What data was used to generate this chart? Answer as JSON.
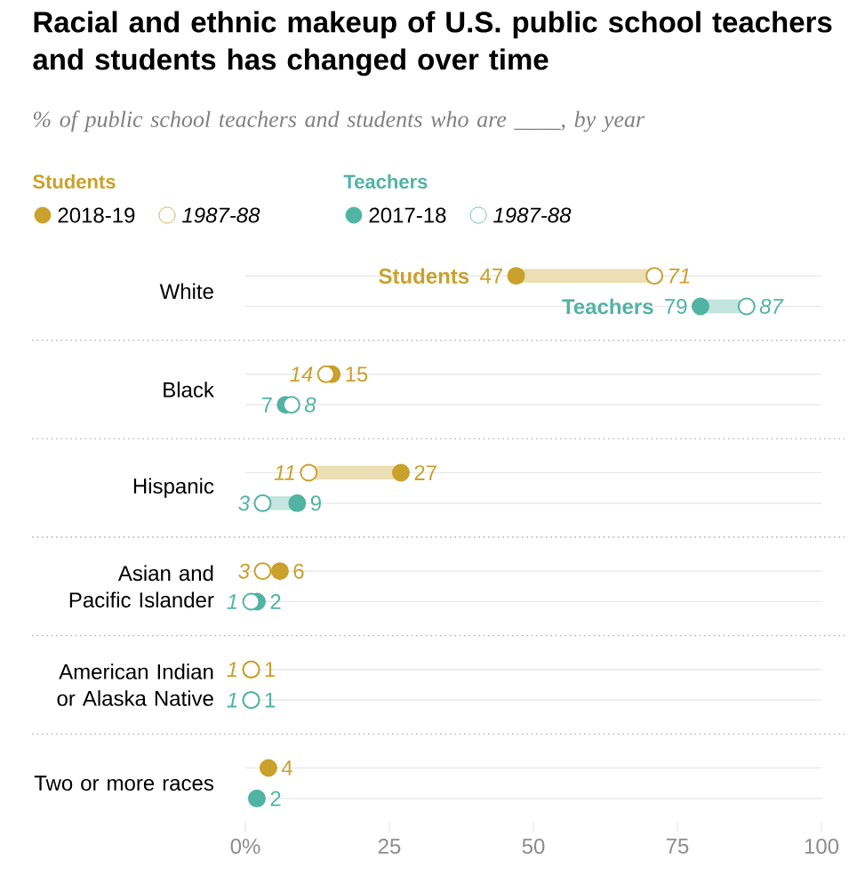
{
  "chart_data": {
    "type": "scatter",
    "orientation": "horizontal",
    "title": "Racial and ethnic makeup of U.S. public school teachers and students has changed over time",
    "subtitle": "% of public school teachers and students who are ____, by year",
    "categories": [
      "White",
      "Black",
      "Hispanic",
      "Asian and Pacific Islander",
      "American Indian or Alaska Native",
      "Two or more races"
    ],
    "series": [
      {
        "name": "2018-19",
        "color": "#c9a12c",
        "values": [
          47,
          15,
          27,
          6,
          1,
          4
        ]
      },
      {
        "name": "1987-88",
        "color": "#c9a12c",
        "values": [
          71,
          14,
          11,
          3,
          1,
          null
        ]
      },
      {
        "name": "2017-18",
        "color": "#52b3a3",
        "values": [
          79,
          7,
          9,
          2,
          1,
          2
        ]
      },
      {
        "name": "1987-88",
        "color": "#52b3a3",
        "values": [
          87,
          8,
          3,
          1,
          1,
          null
        ]
      },
      {
        "type": "bar",
        "color": "#ecdeb5",
        "base": [
          47,
          null,
          11,
          null,
          null,
          null
        ],
        "values": [
          24,
          null,
          16,
          null,
          null,
          null
        ],
        "value_labels": [
          null,
          null,
          null,
          null,
          null,
          null
        ]
      },
      {
        "type": "bar",
        "color": "#c3e4df",
        "base": [
          79,
          null,
          3,
          null,
          null,
          null
        ],
        "values": [
          8,
          null,
          6,
          null,
          null,
          null
        ],
        "value_labels": [
          null,
          null,
          null,
          null,
          null,
          null
        ]
      }
    ],
    "annotations": [
      "Students",
      "Teachers",
      {
        "text": "Students",
        "x": 47,
        "y": "White"
      },
      {
        "text": "Teachers",
        "x": 79,
        "y": "White"
      }
    ],
    "xlim": [
      0,
      100
    ],
    "xticks": [
      {
        "value": 0,
        "label": "0%"
      },
      25,
      50,
      75,
      100
    ],
    "marker": "circle",
    "grid": "y",
    "legend": "top left",
    "data_labels": true
  }
}
